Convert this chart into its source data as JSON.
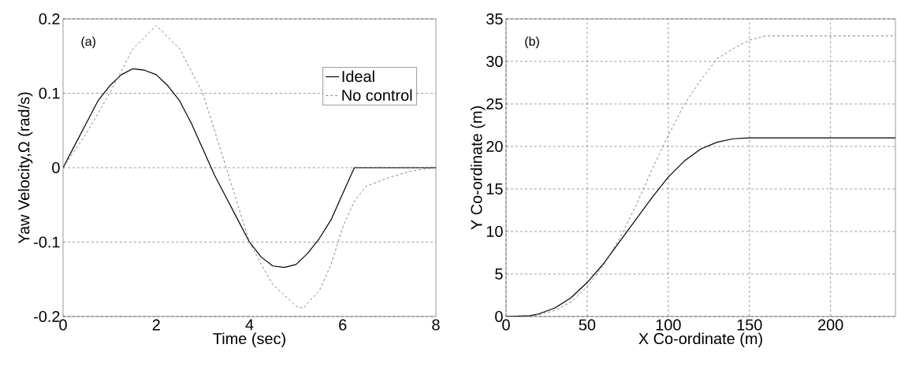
{
  "chart_data": [
    {
      "type": "line",
      "xlabel": "Time (sec)",
      "ylabel": "Yaw Velocity,Ω (rad/s)",
      "annotations": [
        "(a)"
      ],
      "xlim": [
        0,
        8
      ],
      "ylim": [
        -0.2,
        0.2
      ],
      "xticks": [
        0,
        2,
        4,
        6,
        8
      ],
      "yticks": [
        -0.2,
        -0.1,
        0,
        0.1,
        0.2
      ],
      "grid": "y",
      "legend": "top right",
      "series": [
        {
          "name": "Ideal",
          "color": "#000000",
          "line_style": "solid",
          "x": [
            0,
            0.25,
            0.5,
            0.75,
            1.0,
            1.25,
            1.5,
            1.75,
            2.0,
            2.25,
            2.5,
            2.75,
            3.0,
            3.25,
            3.5,
            3.75,
            4.0,
            4.25,
            4.5,
            4.75,
            5.0,
            5.25,
            5.5,
            5.75,
            6.0,
            6.25,
            6.5,
            7.0,
            8.0
          ],
          "values": [
            0,
            0.03,
            0.06,
            0.09,
            0.11,
            0.125,
            0.133,
            0.131,
            0.125,
            0.11,
            0.09,
            0.06,
            0.025,
            -0.01,
            -0.04,
            -0.07,
            -0.1,
            -0.12,
            -0.132,
            -0.134,
            -0.13,
            -0.115,
            -0.095,
            -0.07,
            -0.035,
            0,
            0,
            0,
            0
          ]
        },
        {
          "name": "No control",
          "color": "#666666",
          "line_style": "dashed",
          "x": [
            0,
            0.5,
            1.0,
            1.5,
            2.0,
            2.5,
            3.0,
            3.5,
            4.0,
            4.25,
            4.5,
            5.0,
            5.15,
            5.5,
            5.75,
            6.0,
            6.25,
            6.5,
            7.0,
            7.5,
            8.0
          ],
          "values": [
            0,
            0.046,
            0.1,
            0.16,
            0.191,
            0.16,
            0.1,
            0.0,
            -0.1,
            -0.13,
            -0.157,
            -0.186,
            -0.189,
            -0.165,
            -0.13,
            -0.08,
            -0.045,
            -0.025,
            -0.013,
            -0.004,
            0
          ]
        }
      ]
    },
    {
      "type": "line",
      "xlabel": "X Co-ordinate (m)",
      "ylabel": "Y Co-ordinate (m)",
      "annotations": [
        "(b)"
      ],
      "xlim": [
        0,
        240
      ],
      "ylim": [
        0,
        35
      ],
      "xticks": [
        0,
        50,
        100,
        150,
        200
      ],
      "yticks": [
        0,
        5,
        10,
        15,
        20,
        25,
        30,
        35
      ],
      "grid": true,
      "series": [
        {
          "color": "#000000",
          "line_style": "solid",
          "x": [
            0,
            15,
            20,
            30,
            40,
            50,
            60,
            70,
            80,
            90,
            100,
            110,
            120,
            130,
            140,
            150,
            240
          ],
          "values": [
            0,
            0.1,
            0.3,
            1.0,
            2.2,
            4.0,
            6.2,
            8.8,
            11.4,
            14.0,
            16.4,
            18.3,
            19.7,
            20.5,
            20.9,
            21,
            21
          ]
        },
        {
          "color": "#666666",
          "line_style": "dashed",
          "x": [
            0,
            15,
            20,
            30,
            40,
            50,
            60,
            70,
            80,
            90,
            100,
            110,
            120,
            130,
            140,
            150,
            160,
            240
          ],
          "values": [
            0,
            0.05,
            0.2,
            0.7,
            1.7,
            3.5,
            6.0,
            9.2,
            13.0,
            17.3,
            21.3,
            25.0,
            27.8,
            30.3,
            31.5,
            32.5,
            33.0,
            33
          ]
        }
      ]
    }
  ]
}
